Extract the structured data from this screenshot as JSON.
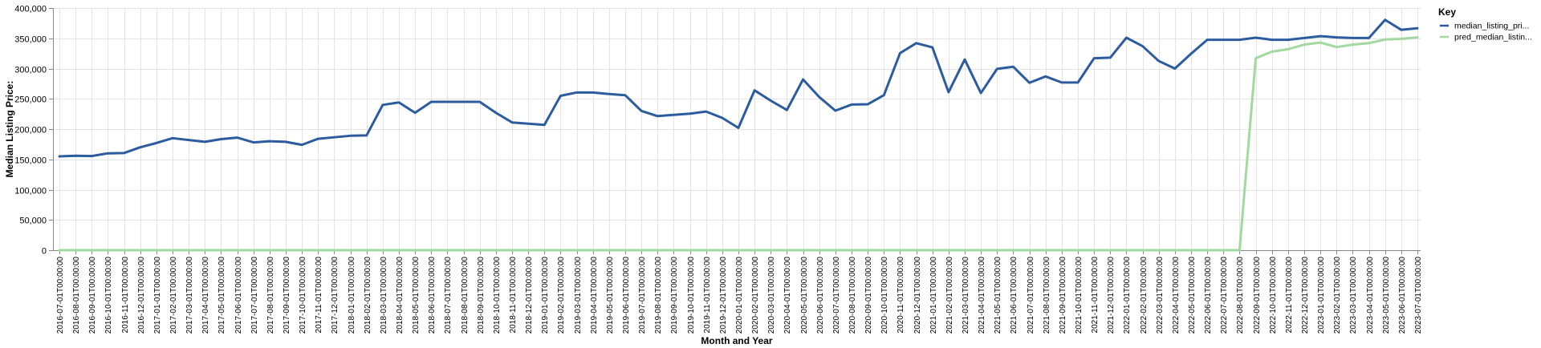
{
  "chart_data": {
    "type": "line",
    "title": "",
    "xlabel": "Month and Year",
    "ylabel": "Median Listing Price:",
    "ylim": [
      0,
      400000
    ],
    "yticks": [
      0,
      50000,
      100000,
      150000,
      200000,
      250000,
      300000,
      350000,
      400000
    ],
    "ytick_labels": [
      "0",
      "50,000",
      "100,000",
      "150,000",
      "200,000",
      "250,000",
      "300,000",
      "350,000",
      "400,000"
    ],
    "grid": true,
    "legend": {
      "title": "Key",
      "position": "right",
      "entries": [
        "median_listing_pri...",
        "pred_median_listin..."
      ]
    },
    "x": [
      "2016-07-01T00:00:00",
      "2016-08-01T00:00:00",
      "2016-09-01T00:00:00",
      "2016-10-01T00:00:00",
      "2016-11-01T00:00:00",
      "2016-12-01T00:00:00",
      "2017-01-01T00:00:00",
      "2017-02-01T00:00:00",
      "2017-03-01T00:00:00",
      "2017-04-01T00:00:00",
      "2017-05-01T00:00:00",
      "2017-06-01T00:00:00",
      "2017-07-01T00:00:00",
      "2017-08-01T00:00:00",
      "2017-09-01T00:00:00",
      "2017-10-01T00:00:00",
      "2017-11-01T00:00:00",
      "2017-12-01T00:00:00",
      "2018-01-01T00:00:00",
      "2018-02-01T00:00:00",
      "2018-03-01T00:00:00",
      "2018-04-01T00:00:00",
      "2018-05-01T00:00:00",
      "2018-06-01T00:00:00",
      "2018-07-01T00:00:00",
      "2018-08-01T00:00:00",
      "2018-09-01T00:00:00",
      "2018-10-01T00:00:00",
      "2018-11-01T00:00:00",
      "2018-12-01T00:00:00",
      "2019-01-01T00:00:00",
      "2019-02-01T00:00:00",
      "2019-03-01T00:00:00",
      "2019-04-01T00:00:00",
      "2019-05-01T00:00:00",
      "2019-06-01T00:00:00",
      "2019-07-01T00:00:00",
      "2019-08-01T00:00:00",
      "2019-09-01T00:00:00",
      "2019-10-01T00:00:00",
      "2019-11-01T00:00:00",
      "2019-12-01T00:00:00",
      "2020-01-01T00:00:00",
      "2020-02-01T00:00:00",
      "2020-03-01T00:00:00",
      "2020-04-01T00:00:00",
      "2020-05-01T00:00:00",
      "2020-06-01T00:00:00",
      "2020-07-01T00:00:00",
      "2020-08-01T00:00:00",
      "2020-09-01T00:00:00",
      "2020-10-01T00:00:00",
      "2020-11-01T00:00:00",
      "2020-12-01T00:00:00",
      "2021-01-01T00:00:00",
      "2021-02-01T00:00:00",
      "2021-03-01T00:00:00",
      "2021-04-01T00:00:00",
      "2021-05-01T00:00:00",
      "2021-06-01T00:00:00",
      "2021-07-01T00:00:00",
      "2021-08-01T00:00:00",
      "2021-09-01T00:00:00",
      "2021-10-01T00:00:00",
      "2021-11-01T00:00:00",
      "2021-12-01T00:00:00",
      "2022-01-01T00:00:00",
      "2022-02-01T00:00:00",
      "2022-03-01T00:00:00",
      "2022-04-01T00:00:00",
      "2022-05-01T00:00:00",
      "2022-06-01T00:00:00",
      "2022-07-01T00:00:00",
      "2022-08-01T00:00:00",
      "2022-09-01T00:00:00",
      "2022-10-01T00:00:00",
      "2022-11-01T00:00:00",
      "2022-12-01T00:00:00",
      "2023-01-01T00:00:00",
      "2023-02-01T00:00:00",
      "2023-03-01T00:00:00",
      "2023-04-01T00:00:00",
      "2023-05-01T00:00:00",
      "2023-06-01T00:00:00",
      "2023-07-01T00:00:00"
    ],
    "series": [
      {
        "name": "median_listing_pri...",
        "color": "#2c5c9e",
        "values": [
          155000,
          156000,
          155500,
          160000,
          160500,
          170000,
          177000,
          185000,
          182000,
          179000,
          183500,
          186000,
          178000,
          180000,
          179000,
          174000,
          184000,
          186500,
          189000,
          189500,
          240000,
          244000,
          227000,
          245000,
          245000,
          245000,
          245000,
          227000,
          211000,
          209000,
          207000,
          255000,
          260500,
          260500,
          258000,
          256000,
          230000,
          221500,
          223500,
          225500,
          229000,
          218500,
          202000,
          264000,
          247000,
          231500,
          282000,
          253000,
          230500,
          240500,
          241000,
          256000,
          325500,
          342000,
          335000,
          261000,
          315000,
          259500,
          299500,
          303000,
          276500,
          287000,
          277000,
          277000,
          317000,
          318000,
          351000,
          337000,
          312500,
          300000,
          324500,
          347500,
          347500,
          347500,
          351000,
          347500,
          347500,
          350500,
          353500,
          351500,
          350500,
          350500,
          380500,
          364000,
          366500
        ]
      },
      {
        "name": "pred_median_listin...",
        "color": "#a2d9a0",
        "values": [
          0,
          0,
          0,
          0,
          0,
          0,
          0,
          0,
          0,
          0,
          0,
          0,
          0,
          0,
          0,
          0,
          0,
          0,
          0,
          0,
          0,
          0,
          0,
          0,
          0,
          0,
          0,
          0,
          0,
          0,
          0,
          0,
          0,
          0,
          0,
          0,
          0,
          0,
          0,
          0,
          0,
          0,
          0,
          0,
          0,
          0,
          0,
          0,
          0,
          0,
          0,
          0,
          0,
          0,
          0,
          0,
          0,
          0,
          0,
          0,
          0,
          0,
          0,
          0,
          0,
          0,
          0,
          0,
          0,
          0,
          0,
          0,
          0,
          0,
          317000,
          328000,
          332000,
          339500,
          343000,
          335500,
          339500,
          342000,
          348000,
          349000,
          351500
        ]
      }
    ]
  }
}
